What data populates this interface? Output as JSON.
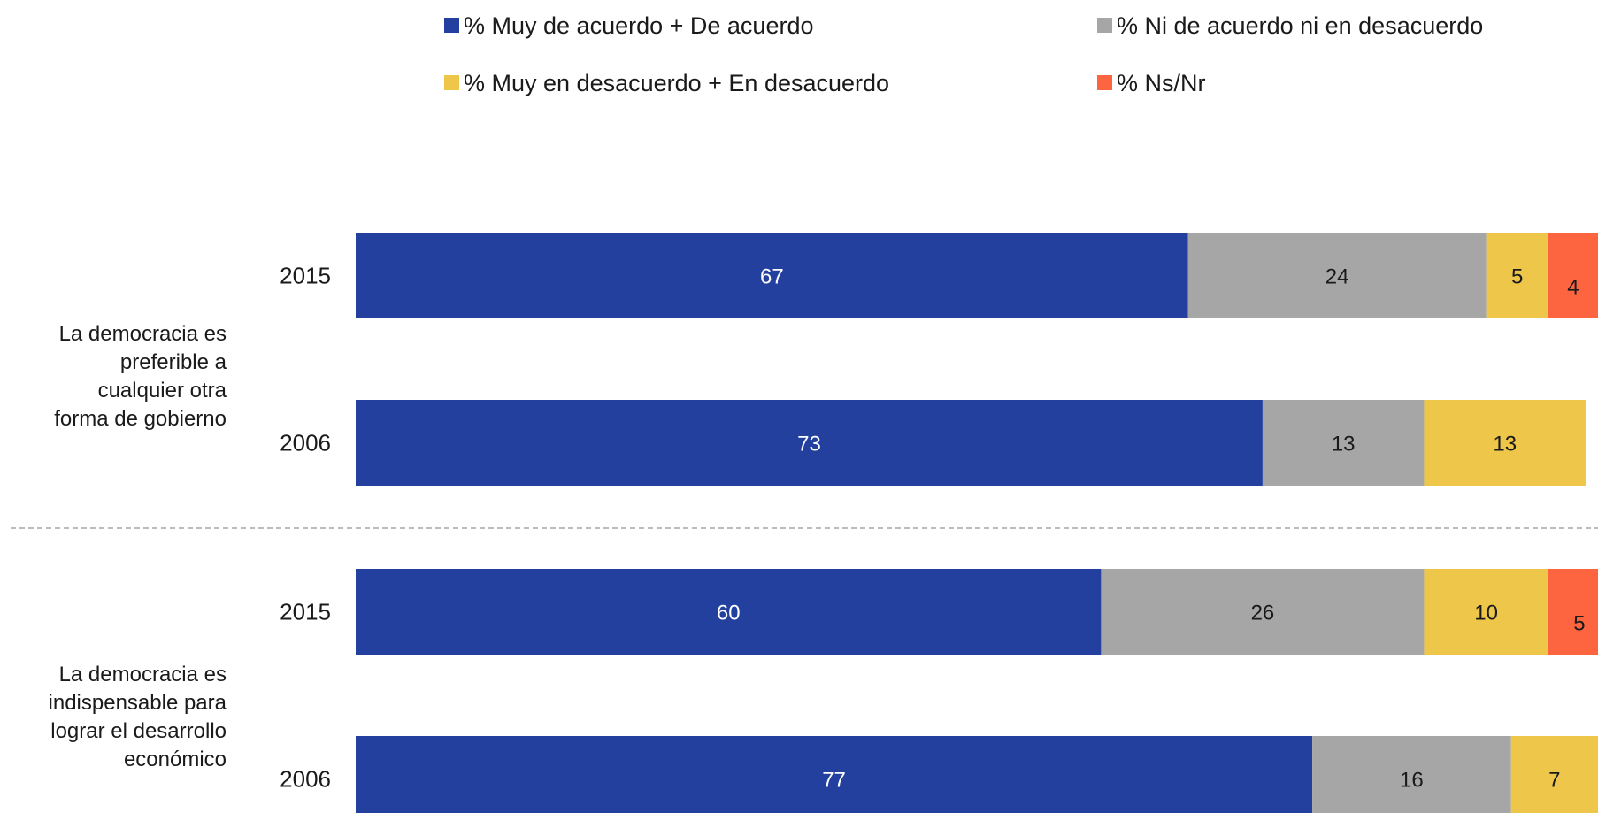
{
  "chart_data": {
    "type": "bar",
    "orientation": "horizontal",
    "stacked": true,
    "xlim": [
      0,
      100
    ],
    "legend_position": "top",
    "grid": false,
    "groups": [
      {
        "label_lines": [
          "La democracia es",
          "preferible a",
          "cualquier otra",
          "forma de gobierno"
        ],
        "rows": [
          {
            "year": "2015",
            "values": [
              67,
              24,
              5,
              4
            ]
          },
          {
            "year": "2006",
            "values": [
              73,
              13,
              13,
              0
            ]
          }
        ]
      },
      {
        "label_lines": [
          "La democracia es",
          "indispensable para",
          "lograr el desarrollo",
          "económico"
        ],
        "rows": [
          {
            "year": "2015",
            "values": [
              60,
              26,
              10,
              5
            ]
          },
          {
            "year": "2006",
            "values": [
              77,
              16,
              7,
              0
            ]
          }
        ]
      }
    ],
    "series": [
      {
        "name": "% Muy de acuerdo + De acuerdo",
        "color": "#23409f",
        "label_color": "#ffffff"
      },
      {
        "name": "% Ni de acuerdo ni en desacuerdo",
        "color": "#a6a6a6",
        "label_color": "#1a1a1a"
      },
      {
        "name": "% Muy en desacuerdo + En desacuerdo",
        "color": "#eec64a",
        "label_color": "#1a1a1a"
      },
      {
        "name": "% Ns/Nr",
        "color": "#fd6541",
        "label_color": "#1a1a1a"
      }
    ]
  }
}
